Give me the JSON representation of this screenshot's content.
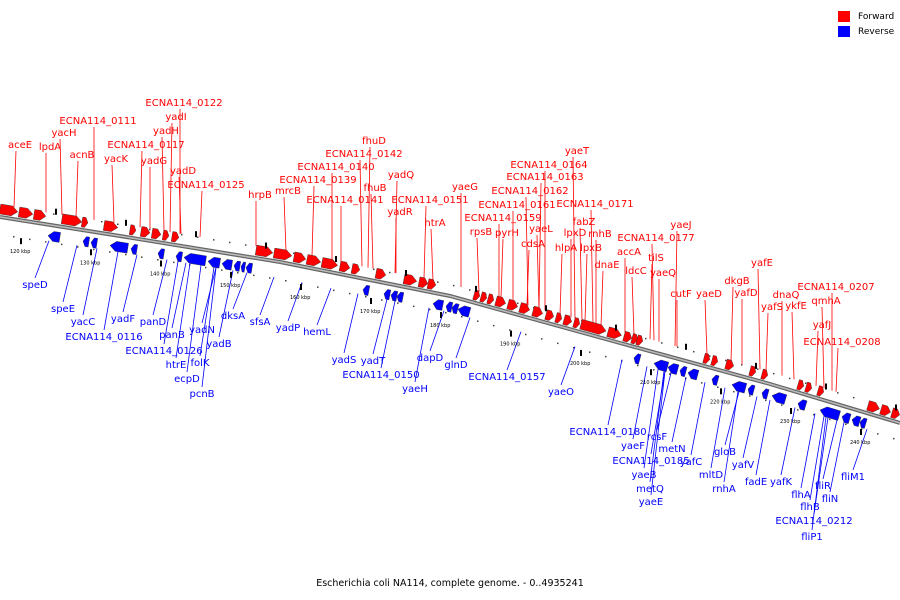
{
  "legend": {
    "forward_label": "Forward",
    "forward_color": "#ff0000",
    "reverse_label": "Reverse",
    "reverse_color": "#0000ff"
  },
  "caption": "Escherichia coli NA114, complete genome. - 0..4935241",
  "ticks": [
    "120 kbp",
    "130 kbp",
    "140 kbp",
    "150 kbp",
    "160 kbp",
    "170 kbp",
    "180 kbp",
    "190 kbp",
    "200 kbp",
    "210 kbp",
    "220 kbp",
    "230 kbp",
    "240 kbp"
  ],
  "forward_genes": [
    "aceE",
    "lpdA",
    "yacH",
    "acnB",
    "ECNA114_0111",
    "yacK",
    "ECNA114_0117",
    "yadG",
    "yadH",
    "yadI",
    "ECNA114_0122",
    "yadD",
    "ECNA114_0125",
    "hrpB",
    "mrcB",
    "ECNA114_0139",
    "ECNA114_0140",
    "ECNA114_0142",
    "fhuD",
    "ECNA114_0141",
    "fhuB",
    "yadQ",
    "yadR",
    "htrA",
    "ECNA114_0151",
    "yaeG",
    "rpsB",
    "pyrH",
    "ECNA114_0159",
    "yaeL",
    "cdsA",
    "ECNA114_0161",
    "ECNA114_0162",
    "ECNA114_0163",
    "ECNA114_0164",
    "yaeT",
    "hlpA",
    "lpxD",
    "fabZ",
    "lpxB",
    "rnhB",
    "ECNA114_0171",
    "dnaE",
    "accA",
    "ldcC",
    "tilS",
    "yaeQ",
    "ECNA114_0177",
    "yaeJ",
    "cutF",
    "yaeD",
    "dkgB",
    "yafD",
    "yafE",
    "yafS",
    "dnaQ",
    "ykfE",
    "yafJ",
    "ECNA114_0207",
    "qmhA",
    "ECNA114_0208"
  ],
  "reverse_genes": [
    "speD",
    "speE",
    "yacC",
    "ECNA114_0116",
    "yadF",
    "panD",
    "panB",
    "ECNA114_0126",
    "htrE",
    "ecpD",
    "yadN",
    "folK",
    "pcnB",
    "yadB",
    "dksA",
    "sfsA",
    "yadP",
    "hemL",
    "yadS",
    "yadT",
    "ECNA114_0150",
    "yaeH",
    "dapD",
    "glnD",
    "ECNA114_0157",
    "yaeO",
    "ECNA114_0180",
    "yaeF",
    "rcsF",
    "ECNA114_0185",
    "metN",
    "yaeB",
    "metQ",
    "yaeE",
    "yafC",
    "mltD",
    "gloB",
    "rnhA",
    "yafV",
    "fadE",
    "yafK",
    "flhA",
    "flhB",
    "fliR",
    "fliN",
    "ECNA114_0212",
    "fliP1",
    "fliM1"
  ]
}
